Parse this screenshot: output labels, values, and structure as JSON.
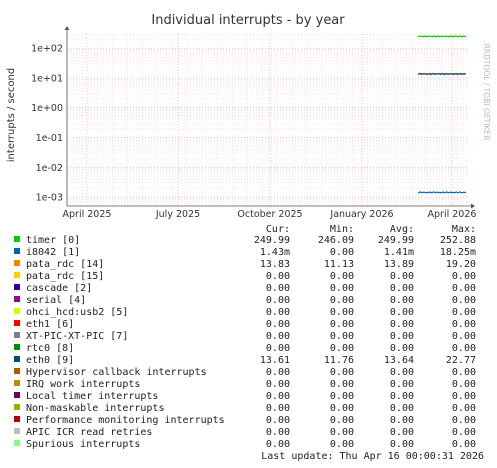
{
  "chart_data": {
    "type": "line",
    "title": "Individual interrupts - by year",
    "ylabel": "interrupts / second",
    "watermark": "RRDTOOL / TOBI OETIKER",
    "yscale": "log",
    "ylim": [
      0.0005,
      300
    ],
    "yticks": [
      {
        "value": 0.001,
        "label": "1e-03"
      },
      {
        "value": 0.01,
        "label": "1e-02"
      },
      {
        "value": 0.1,
        "label": "1e-01"
      },
      {
        "value": 1,
        "label": "1e+00"
      },
      {
        "value": 10,
        "label": "1e+01"
      },
      {
        "value": 100,
        "label": "1e+02"
      }
    ],
    "xlim": [
      "2025-03-12",
      "2026-04-16"
    ],
    "xticks": [
      {
        "date": "2025-04-01",
        "label": "April 2025"
      },
      {
        "date": "2025-07-01",
        "label": "July 2025"
      },
      {
        "date": "2025-10-01",
        "label": "October 2025"
      },
      {
        "date": "2026-01-01",
        "label": "January 2026"
      },
      {
        "date": "2026-04-01",
        "label": "April 2026"
      }
    ],
    "grid": true,
    "columns": [
      "Cur:",
      "Min:",
      "Avg:",
      "Max:"
    ],
    "series": [
      {
        "name": "timer [0]",
        "color": "#00cc00",
        "cur": "249.99",
        "min": "246.09",
        "avg": "249.99",
        "max": "252.88",
        "points": [
          {
            "x": "2026-02-26",
            "y": 249.99
          },
          {
            "x": "2026-04-15",
            "y": 249.99
          }
        ]
      },
      {
        "name": "i8042 [1]",
        "color": "#0066b3",
        "cur": "1.43m",
        "min": "0.00",
        "avg": "1.41m",
        "max": "18.25m",
        "points": [
          {
            "x": "2026-02-26",
            "y": 0.00143
          },
          {
            "x": "2026-04-15",
            "y": 0.00143
          }
        ]
      },
      {
        "name": "pata_rdc [14]",
        "color": "#ff8000",
        "cur": "13.83",
        "min": "11.13",
        "avg": "13.89",
        "max": "19.20",
        "points": [
          {
            "x": "2026-02-26",
            "y": 13.83
          },
          {
            "x": "2026-04-15",
            "y": 13.83
          }
        ]
      },
      {
        "name": "pata_rdc [15]",
        "color": "#ffcc00",
        "cur": "0.00",
        "min": "0.00",
        "avg": "0.00",
        "max": "0.00",
        "points": []
      },
      {
        "name": "cascade [2]",
        "color": "#330099",
        "cur": "0.00",
        "min": "0.00",
        "avg": "0.00",
        "max": "0.00",
        "points": []
      },
      {
        "name": "serial [4]",
        "color": "#990099",
        "cur": "0.00",
        "min": "0.00",
        "avg": "0.00",
        "max": "0.00",
        "points": []
      },
      {
        "name": "ohci_hcd:usb2 [5]",
        "color": "#ccff00",
        "cur": "0.00",
        "min": "0.00",
        "avg": "0.00",
        "max": "0.00",
        "points": []
      },
      {
        "name": "eth1 [6]",
        "color": "#ff0000",
        "cur": "0.00",
        "min": "0.00",
        "avg": "0.00",
        "max": "0.00",
        "points": []
      },
      {
        "name": "XT-PIC-XT-PIC [7]",
        "color": "#808080",
        "cur": "0.00",
        "min": "0.00",
        "avg": "0.00",
        "max": "0.00",
        "points": []
      },
      {
        "name": "rtc0 [8]",
        "color": "#008f00",
        "cur": "0.00",
        "min": "0.00",
        "avg": "0.00",
        "max": "0.00",
        "points": []
      },
      {
        "name": "eth0 [9]",
        "color": "#00487d",
        "cur": "13.61",
        "min": "11.76",
        "avg": "13.64",
        "max": "22.77",
        "points": [
          {
            "x": "2026-02-26",
            "y": 13.61
          },
          {
            "x": "2026-04-15",
            "y": 13.61
          }
        ]
      },
      {
        "name": "Hypervisor callback interrupts",
        "color": "#b35a00",
        "cur": "0.00",
        "min": "0.00",
        "avg": "0.00",
        "max": "0.00",
        "points": []
      },
      {
        "name": "IRQ work interrupts",
        "color": "#b38f00",
        "cur": "0.00",
        "min": "0.00",
        "avg": "0.00",
        "max": "0.00",
        "points": []
      },
      {
        "name": "Local timer interrupts",
        "color": "#6b006b",
        "cur": "0.00",
        "min": "0.00",
        "avg": "0.00",
        "max": "0.00",
        "points": []
      },
      {
        "name": "Non-maskable interrupts",
        "color": "#8fb300",
        "cur": "0.00",
        "min": "0.00",
        "avg": "0.00",
        "max": "0.00",
        "points": []
      },
      {
        "name": "Performance monitoring interrupts",
        "color": "#b30000",
        "cur": "0.00",
        "min": "0.00",
        "avg": "0.00",
        "max": "0.00",
        "points": []
      },
      {
        "name": "APIC ICR read retries",
        "color": "#bebebe",
        "cur": "0.00",
        "min": "0.00",
        "avg": "0.00",
        "max": "0.00",
        "points": []
      },
      {
        "name": "Spurious interrupts",
        "color": "#80ff80",
        "cur": "0.00",
        "min": "0.00",
        "avg": "0.00",
        "max": "0.00",
        "points": []
      }
    ],
    "last_update": "Last update: Thu Apr 16 00:00:31 2026"
  }
}
